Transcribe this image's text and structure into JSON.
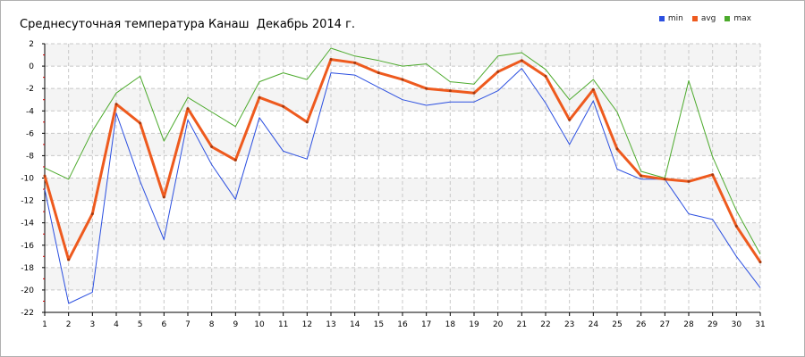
{
  "title": "Среднесуточная температура Канаш  Декабрь 2014 г.",
  "legend": [
    {
      "name": "min",
      "color": "#2b4fe0"
    },
    {
      "name": "avg",
      "color": "#ee5a1e"
    },
    {
      "name": "max",
      "color": "#4caa2c"
    }
  ],
  "chart_data": {
    "type": "line",
    "title": "Среднесуточная температура Канаш  Декабрь 2014 г.",
    "xlabel": "",
    "ylabel": "",
    "x": [
      1,
      2,
      3,
      4,
      5,
      6,
      7,
      8,
      9,
      10,
      11,
      12,
      13,
      14,
      15,
      16,
      17,
      18,
      19,
      20,
      21,
      22,
      23,
      24,
      25,
      26,
      27,
      28,
      29,
      30,
      31
    ],
    "ylim": [
      -22,
      2
    ],
    "yticks": [
      2,
      0,
      -2,
      -4,
      -6,
      -8,
      -10,
      -12,
      -14,
      -16,
      -18,
      -20,
      -22
    ],
    "grid": true,
    "legend_position": "top-right",
    "series": [
      {
        "name": "min",
        "color": "#2b4fe0",
        "width": 1,
        "values": [
          -11.0,
          -21.2,
          -20.2,
          -4.2,
          -10.3,
          -15.5,
          -4.8,
          -8.8,
          -11.9,
          -4.6,
          -7.6,
          -8.3,
          -0.6,
          -0.8,
          -1.9,
          -3.0,
          -3.5,
          -3.2,
          -3.2,
          -2.2,
          -0.2,
          -3.3,
          -7.0,
          -3.1,
          -9.2,
          -10.1,
          -10.1,
          -13.2,
          -13.7,
          -17.0,
          -19.8
        ]
      },
      {
        "name": "avg",
        "color": "#ee5a1e",
        "width": 3,
        "values": [
          -9.8,
          -17.3,
          -13.2,
          -3.4,
          -5.1,
          -11.7,
          -3.8,
          -7.2,
          -8.4,
          -2.8,
          -3.6,
          -5.0,
          0.6,
          0.3,
          -0.6,
          -1.2,
          -2.0,
          -2.2,
          -2.4,
          -0.5,
          0.5,
          -0.9,
          -4.8,
          -2.1,
          -7.4,
          -9.8,
          -10.1,
          -10.3,
          -9.7,
          -14.3,
          -17.5
        ]
      },
      {
        "name": "max",
        "color": "#4caa2c",
        "width": 1,
        "values": [
          -9.1,
          -10.1,
          -5.8,
          -2.4,
          -0.9,
          -6.7,
          -2.8,
          -4.1,
          -5.4,
          -1.4,
          -0.6,
          -1.2,
          1.6,
          0.9,
          0.5,
          0.0,
          0.2,
          -1.4,
          -1.6,
          0.9,
          1.2,
          -0.3,
          -3.0,
          -1.2,
          -4.1,
          -9.4,
          -10.0,
          -1.3,
          -8.1,
          -12.9,
          -16.8
        ]
      }
    ]
  }
}
